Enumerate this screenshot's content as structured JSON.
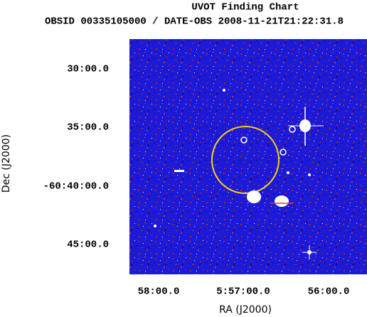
{
  "header": {
    "title": "UVOT Finding Chart",
    "subtitle": "OBSID 00335105000 / DATE-OBS 2008-11-21T21:22:31.8"
  },
  "axes": {
    "x": {
      "label": "RA (J2000)",
      "ticks": [
        "58:00.0",
        "5:57:00.0",
        "56:00.0"
      ]
    },
    "y": {
      "label": "Dec (J2000)",
      "ticks": [
        "30:00.0",
        "35:00.0",
        "-60:40:00.0",
        "45:00.0"
      ]
    }
  }
}
